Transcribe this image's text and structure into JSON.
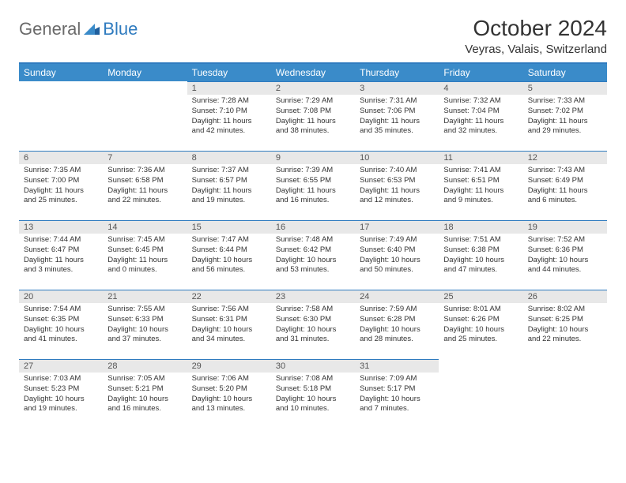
{
  "logo": {
    "text1": "General",
    "text2": "Blue"
  },
  "title": "October 2024",
  "location": "Veyras, Valais, Switzerland",
  "colors": {
    "header_bg": "#3a8bc9",
    "header_text": "#ffffff",
    "border": "#2f7bbf",
    "daynum_bg": "#e8e8e8",
    "text": "#333333",
    "logo_gray": "#6a6a6a",
    "logo_blue": "#2f7bbf"
  },
  "weekdays": [
    "Sunday",
    "Monday",
    "Tuesday",
    "Wednesday",
    "Thursday",
    "Friday",
    "Saturday"
  ],
  "weeks": [
    [
      null,
      null,
      {
        "n": "1",
        "sr": "Sunrise: 7:28 AM",
        "ss": "Sunset: 7:10 PM",
        "dl": "Daylight: 11 hours and 42 minutes."
      },
      {
        "n": "2",
        "sr": "Sunrise: 7:29 AM",
        "ss": "Sunset: 7:08 PM",
        "dl": "Daylight: 11 hours and 38 minutes."
      },
      {
        "n": "3",
        "sr": "Sunrise: 7:31 AM",
        "ss": "Sunset: 7:06 PM",
        "dl": "Daylight: 11 hours and 35 minutes."
      },
      {
        "n": "4",
        "sr": "Sunrise: 7:32 AM",
        "ss": "Sunset: 7:04 PM",
        "dl": "Daylight: 11 hours and 32 minutes."
      },
      {
        "n": "5",
        "sr": "Sunrise: 7:33 AM",
        "ss": "Sunset: 7:02 PM",
        "dl": "Daylight: 11 hours and 29 minutes."
      }
    ],
    [
      {
        "n": "6",
        "sr": "Sunrise: 7:35 AM",
        "ss": "Sunset: 7:00 PM",
        "dl": "Daylight: 11 hours and 25 minutes."
      },
      {
        "n": "7",
        "sr": "Sunrise: 7:36 AM",
        "ss": "Sunset: 6:58 PM",
        "dl": "Daylight: 11 hours and 22 minutes."
      },
      {
        "n": "8",
        "sr": "Sunrise: 7:37 AM",
        "ss": "Sunset: 6:57 PM",
        "dl": "Daylight: 11 hours and 19 minutes."
      },
      {
        "n": "9",
        "sr": "Sunrise: 7:39 AM",
        "ss": "Sunset: 6:55 PM",
        "dl": "Daylight: 11 hours and 16 minutes."
      },
      {
        "n": "10",
        "sr": "Sunrise: 7:40 AM",
        "ss": "Sunset: 6:53 PM",
        "dl": "Daylight: 11 hours and 12 minutes."
      },
      {
        "n": "11",
        "sr": "Sunrise: 7:41 AM",
        "ss": "Sunset: 6:51 PM",
        "dl": "Daylight: 11 hours and 9 minutes."
      },
      {
        "n": "12",
        "sr": "Sunrise: 7:43 AM",
        "ss": "Sunset: 6:49 PM",
        "dl": "Daylight: 11 hours and 6 minutes."
      }
    ],
    [
      {
        "n": "13",
        "sr": "Sunrise: 7:44 AM",
        "ss": "Sunset: 6:47 PM",
        "dl": "Daylight: 11 hours and 3 minutes."
      },
      {
        "n": "14",
        "sr": "Sunrise: 7:45 AM",
        "ss": "Sunset: 6:45 PM",
        "dl": "Daylight: 11 hours and 0 minutes."
      },
      {
        "n": "15",
        "sr": "Sunrise: 7:47 AM",
        "ss": "Sunset: 6:44 PM",
        "dl": "Daylight: 10 hours and 56 minutes."
      },
      {
        "n": "16",
        "sr": "Sunrise: 7:48 AM",
        "ss": "Sunset: 6:42 PM",
        "dl": "Daylight: 10 hours and 53 minutes."
      },
      {
        "n": "17",
        "sr": "Sunrise: 7:49 AM",
        "ss": "Sunset: 6:40 PM",
        "dl": "Daylight: 10 hours and 50 minutes."
      },
      {
        "n": "18",
        "sr": "Sunrise: 7:51 AM",
        "ss": "Sunset: 6:38 PM",
        "dl": "Daylight: 10 hours and 47 minutes."
      },
      {
        "n": "19",
        "sr": "Sunrise: 7:52 AM",
        "ss": "Sunset: 6:36 PM",
        "dl": "Daylight: 10 hours and 44 minutes."
      }
    ],
    [
      {
        "n": "20",
        "sr": "Sunrise: 7:54 AM",
        "ss": "Sunset: 6:35 PM",
        "dl": "Daylight: 10 hours and 41 minutes."
      },
      {
        "n": "21",
        "sr": "Sunrise: 7:55 AM",
        "ss": "Sunset: 6:33 PM",
        "dl": "Daylight: 10 hours and 37 minutes."
      },
      {
        "n": "22",
        "sr": "Sunrise: 7:56 AM",
        "ss": "Sunset: 6:31 PM",
        "dl": "Daylight: 10 hours and 34 minutes."
      },
      {
        "n": "23",
        "sr": "Sunrise: 7:58 AM",
        "ss": "Sunset: 6:30 PM",
        "dl": "Daylight: 10 hours and 31 minutes."
      },
      {
        "n": "24",
        "sr": "Sunrise: 7:59 AM",
        "ss": "Sunset: 6:28 PM",
        "dl": "Daylight: 10 hours and 28 minutes."
      },
      {
        "n": "25",
        "sr": "Sunrise: 8:01 AM",
        "ss": "Sunset: 6:26 PM",
        "dl": "Daylight: 10 hours and 25 minutes."
      },
      {
        "n": "26",
        "sr": "Sunrise: 8:02 AM",
        "ss": "Sunset: 6:25 PM",
        "dl": "Daylight: 10 hours and 22 minutes."
      }
    ],
    [
      {
        "n": "27",
        "sr": "Sunrise: 7:03 AM",
        "ss": "Sunset: 5:23 PM",
        "dl": "Daylight: 10 hours and 19 minutes."
      },
      {
        "n": "28",
        "sr": "Sunrise: 7:05 AM",
        "ss": "Sunset: 5:21 PM",
        "dl": "Daylight: 10 hours and 16 minutes."
      },
      {
        "n": "29",
        "sr": "Sunrise: 7:06 AM",
        "ss": "Sunset: 5:20 PM",
        "dl": "Daylight: 10 hours and 13 minutes."
      },
      {
        "n": "30",
        "sr": "Sunrise: 7:08 AM",
        "ss": "Sunset: 5:18 PM",
        "dl": "Daylight: 10 hours and 10 minutes."
      },
      {
        "n": "31",
        "sr": "Sunrise: 7:09 AM",
        "ss": "Sunset: 5:17 PM",
        "dl": "Daylight: 10 hours and 7 minutes."
      },
      null,
      null
    ]
  ]
}
